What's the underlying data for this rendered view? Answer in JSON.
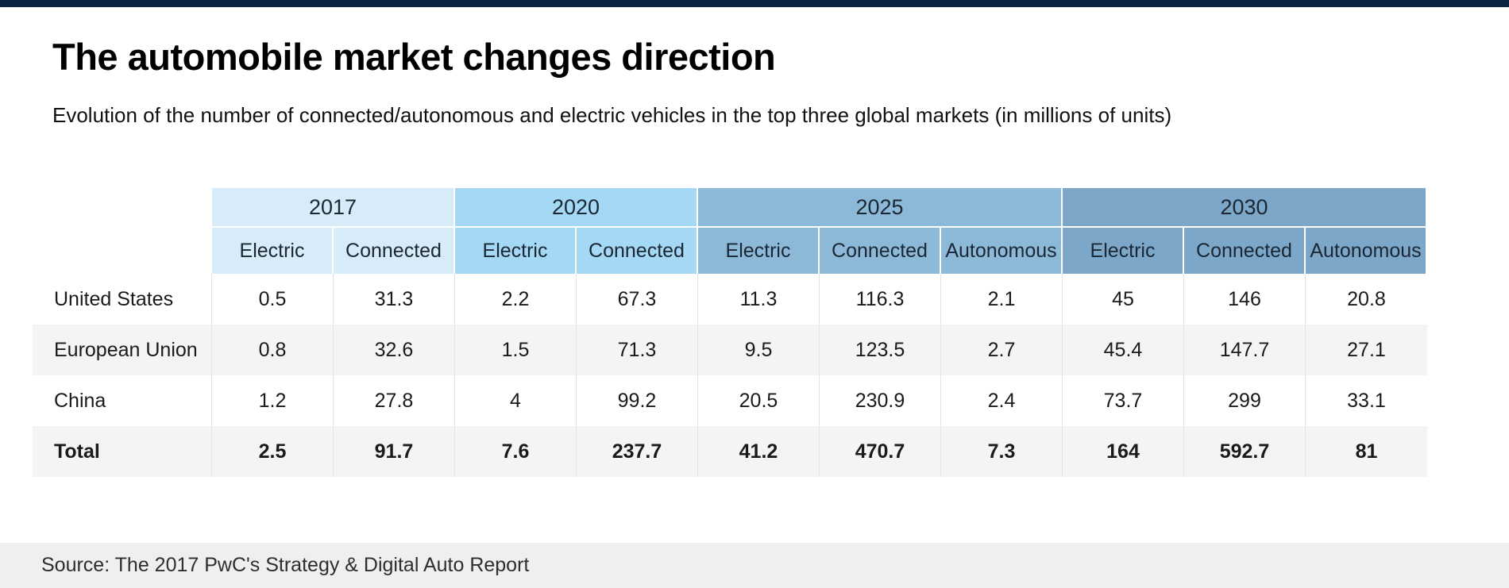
{
  "header": {
    "title": "The automobile market changes direction",
    "subtitle": "Evolution of the number of connected/autonomous and electric vehicles in the top three global markets (in millions of units)"
  },
  "footer": {
    "source": "Source: The 2017 PwC's Strategy & Digital Auto Report"
  },
  "colors": {
    "top_bar": "#0d2444",
    "year_2017": "#d7ebf8",
    "year_2020": "#a5d8f5",
    "year_2025": "#8db9d9",
    "year_2030": "#7da7c9",
    "row_alt": "#f4f4f4",
    "footer_band": "#efefef"
  },
  "chart_data": {
    "type": "table",
    "title": "The automobile market changes direction",
    "subtitle": "Evolution of the number of connected/autonomous and electric vehicles in the top three global markets (in millions of units)",
    "unit": "millions of units",
    "column_groups": [
      {
        "year": "2017",
        "metrics": [
          "Electric",
          "Connected"
        ],
        "color": "#d7ebf8"
      },
      {
        "year": "2020",
        "metrics": [
          "Electric",
          "Connected"
        ],
        "color": "#a5d8f5"
      },
      {
        "year": "2025",
        "metrics": [
          "Electric",
          "Connected",
          "Autonomous"
        ],
        "color": "#8db9d9"
      },
      {
        "year": "2030",
        "metrics": [
          "Electric",
          "Connected",
          "Autonomous"
        ],
        "color": "#7da7c9"
      }
    ],
    "rows": [
      {
        "label": "United States",
        "bold": false,
        "values": [
          "0.5",
          "31.3",
          "2.2",
          "67.3",
          "11.3",
          "116.3",
          "2.1",
          "45",
          "146",
          "20.8"
        ]
      },
      {
        "label": "European Union",
        "bold": false,
        "values": [
          "0.8",
          "32.6",
          "1.5",
          "71.3",
          "9.5",
          "123.5",
          "2.7",
          "45.4",
          "147.7",
          "27.1"
        ]
      },
      {
        "label": "China",
        "bold": false,
        "values": [
          "1.2",
          "27.8",
          "4",
          "99.2",
          "20.5",
          "230.9",
          "2.4",
          "73.7",
          "299",
          "33.1"
        ]
      },
      {
        "label": "Total",
        "bold": true,
        "values": [
          "2.5",
          "91.7",
          "7.6",
          "237.7",
          "41.2",
          "470.7",
          "7.3",
          "164",
          "592.7",
          "81"
        ]
      }
    ]
  }
}
